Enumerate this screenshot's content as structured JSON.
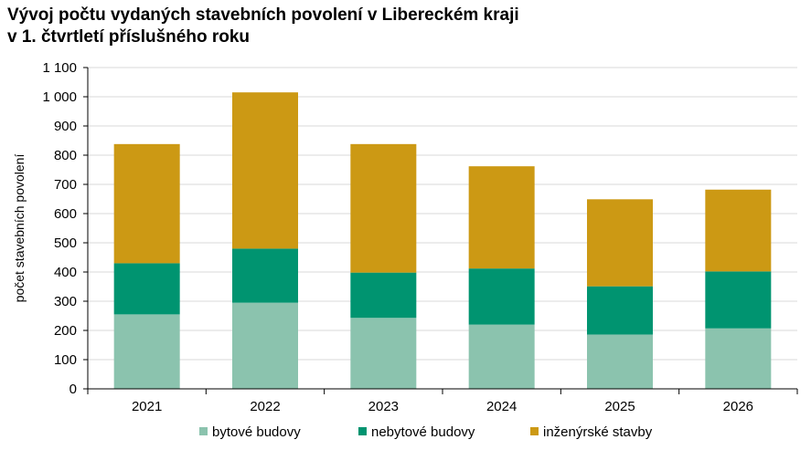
{
  "title_line1": "Vývoj počtu vydaných stavebních povolení v Libereckém kraji",
  "title_line2": "v 1. čtvrtletí příslušného roku",
  "chart_data": {
    "type": "bar",
    "stacked": true,
    "categories": [
      "2021",
      "2022",
      "2023",
      "2024",
      "2025",
      "2026"
    ],
    "series": [
      {
        "name": "bytové budovy",
        "color": "#8BC3AE",
        "values": [
          255,
          295,
          243,
          220,
          186,
          207
        ]
      },
      {
        "name": "nebytové budovy",
        "color": "#009470",
        "values": [
          175,
          185,
          155,
          192,
          165,
          195
        ]
      },
      {
        "name": "inženýrské stavby",
        "color": "#CC9914",
        "values": [
          408,
          535,
          440,
          350,
          298,
          280
        ]
      }
    ],
    "ylabel": "počet stavebních povolení",
    "ylim": [
      0,
      1100
    ],
    "yticks": [
      0,
      100,
      200,
      300,
      400,
      500,
      600,
      700,
      800,
      900,
      1000,
      1100
    ],
    "ytick_labels": [
      "0",
      "100",
      "200",
      "300",
      "400",
      "500",
      "600",
      "700",
      "800",
      "900",
      "1 000",
      "1 100"
    ],
    "grid": true,
    "legend_position": "bottom"
  }
}
